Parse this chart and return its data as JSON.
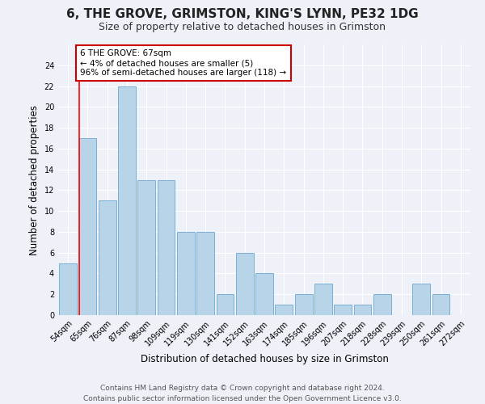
{
  "title1": "6, THE GROVE, GRIMSTON, KING'S LYNN, PE32 1DG",
  "title2": "Size of property relative to detached houses in Grimston",
  "xlabel": "Distribution of detached houses by size in Grimston",
  "ylabel": "Number of detached properties",
  "bar_labels": [
    "54sqm",
    "65sqm",
    "76sqm",
    "87sqm",
    "98sqm",
    "109sqm",
    "119sqm",
    "130sqm",
    "141sqm",
    "152sqm",
    "163sqm",
    "174sqm",
    "185sqm",
    "196sqm",
    "207sqm",
    "218sqm",
    "228sqm",
    "239sqm",
    "250sqm",
    "261sqm",
    "272sqm"
  ],
  "bar_values": [
    5,
    17,
    11,
    22,
    13,
    13,
    8,
    8,
    2,
    6,
    4,
    1,
    2,
    3,
    1,
    1,
    2,
    0,
    3,
    2,
    0
  ],
  "bar_color": "#b8d4e8",
  "bar_edge_color": "#7aafd4",
  "red_line_index": 1,
  "annotation_text": "6 THE GROVE: 67sqm\n← 4% of detached houses are smaller (5)\n96% of semi-detached houses are larger (118) →",
  "annotation_box_color": "#ffffff",
  "annotation_box_edge": "#cc0000",
  "ylim": [
    0,
    26
  ],
  "yticks": [
    0,
    2,
    4,
    6,
    8,
    10,
    12,
    14,
    16,
    18,
    20,
    22,
    24
  ],
  "footer1": "Contains HM Land Registry data © Crown copyright and database right 2024.",
  "footer2": "Contains public sector information licensed under the Open Government Licence v3.0.",
  "bg_color": "#eef2f8",
  "title_fontsize": 11,
  "subtitle_fontsize": 9,
  "tick_fontsize": 7,
  "ylabel_fontsize": 8.5,
  "xlabel_fontsize": 8.5,
  "footer_fontsize": 6.5,
  "annot_fontsize": 7.5
}
